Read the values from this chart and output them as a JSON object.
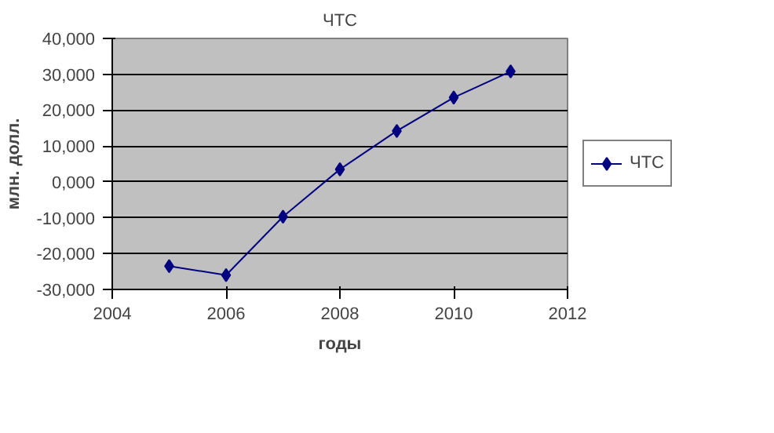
{
  "chart_data": {
    "type": "line",
    "title": "ЧТС",
    "xlabel": "годы",
    "ylabel": "млн. долл.",
    "x": [
      2005,
      2006,
      2007,
      2008,
      2009,
      2010,
      2011
    ],
    "series": [
      {
        "name": "ЧТС",
        "color": "#000080",
        "values": [
          -23500,
          -26000,
          -9700,
          3500,
          14200,
          23500,
          30800
        ]
      }
    ],
    "xlim": [
      2004,
      2012
    ],
    "xticks": [
      2004,
      2006,
      2008,
      2010,
      2012
    ],
    "ylim": [
      -30000,
      40000
    ],
    "yticks": [
      {
        "value": -30000,
        "label": "-30,000"
      },
      {
        "value": -20000,
        "label": "-20,000"
      },
      {
        "value": -10000,
        "label": "-10,000"
      },
      {
        "value": 0,
        "label": "0,000"
      },
      {
        "value": 10000,
        "label": "10,000"
      },
      {
        "value": 20000,
        "label": "20,000"
      },
      {
        "value": 30000,
        "label": "30,000"
      },
      {
        "value": 40000,
        "label": "40,000"
      }
    ],
    "grid": "y",
    "legend": "right",
    "marker": "diamond",
    "line_style": "solid"
  }
}
